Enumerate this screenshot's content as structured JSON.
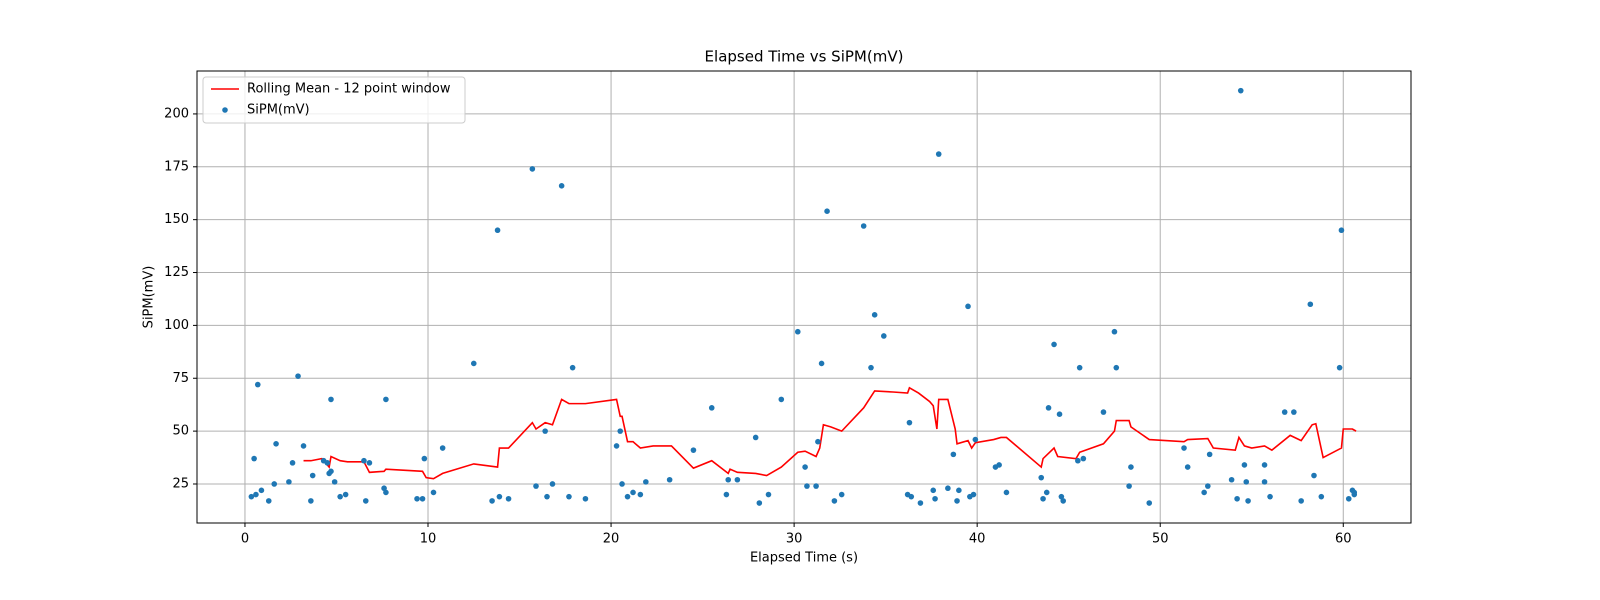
{
  "chart_data": {
    "type": "scatter",
    "title": "Elapsed Time vs SiPM(mV)",
    "x_label": "Elapsed Time (s)",
    "y_label": "SiPM(mV)",
    "xlim": [
      -2.62,
      63.7
    ],
    "ylim": [
      6.55,
      220.3
    ],
    "xticks": [
      0,
      10,
      20,
      30,
      40,
      50,
      60
    ],
    "yticks": [
      25,
      50,
      75,
      100,
      125,
      150,
      175,
      200
    ],
    "grid": true,
    "legend": "upper left",
    "series": [
      {
        "name": "Rolling Mean - 12 point window",
        "type": "line",
        "color": "#ff0000",
        "x": [
          3.2,
          3.6,
          4.2,
          4.4,
          4.6,
          4.7,
          5.2,
          5.6,
          6.5,
          6.8,
          7.6,
          7.7,
          9.7,
          9.9,
          10.3,
          10.8,
          12.5,
          13.8,
          13.9,
          14.4,
          15.7,
          15.9,
          16.4,
          16.8,
          17.3,
          17.7,
          18.6,
          20.3,
          20.5,
          20.6,
          20.9,
          21.2,
          21.6,
          22.3,
          23.3,
          24.5,
          25.5,
          26.4,
          26.5,
          26.9,
          27.9,
          28.5,
          29.3,
          30.2,
          30.6,
          31.2,
          31.4,
          31.6,
          32.0,
          32.6,
          33.8,
          34.4,
          35.4,
          36.2,
          36.3,
          36.8,
          37.4,
          37.6,
          37.8,
          37.9,
          38.4,
          38.8,
          38.9,
          39.5,
          39.7,
          39.9,
          40.9,
          41.3,
          41.6,
          43.5,
          43.6,
          44.2,
          44.4,
          45.4,
          45.6,
          46.9,
          47.5,
          47.6,
          48.3,
          48.4,
          49.4,
          51.3,
          51.5,
          52.6,
          52.9,
          54.1,
          54.3,
          54.6,
          55.0,
          55.7,
          56.1,
          57.1,
          57.7,
          58.3,
          58.5,
          58.9,
          59.9,
          60.0,
          60.5,
          60.7
        ],
        "values": [
          36,
          36,
          37,
          35,
          33,
          38,
          36,
          35.5,
          35.5,
          30.5,
          31,
          32,
          31,
          28,
          27.5,
          30,
          34.5,
          33,
          42,
          42,
          54,
          51,
          54,
          53,
          65,
          63,
          63,
          65,
          57,
          57,
          45,
          45,
          42,
          43,
          43,
          32.5,
          36,
          30,
          32,
          30.5,
          30,
          29,
          33,
          40,
          40.5,
          38,
          42,
          53,
          52,
          50,
          61,
          69,
          68.5,
          68,
          70.5,
          68,
          64,
          62,
          51,
          65,
          65,
          51,
          44,
          45.5,
          42,
          44.5,
          46,
          47,
          47,
          33,
          37,
          42,
          38,
          37,
          40,
          44,
          50,
          55,
          55,
          52,
          46,
          45,
          46,
          46.5,
          42,
          41,
          47,
          43,
          42,
          43,
          41,
          48,
          45.5,
          53,
          53.5,
          37.5,
          42,
          51,
          51,
          50
        ]
      },
      {
        "name": "SiPM(mV)",
        "type": "scatter",
        "color": "#1f77b4",
        "x": [
          0.35,
          0.5,
          0.6,
          0.7,
          0.9,
          1.3,
          1.6,
          1.7,
          2.4,
          2.6,
          2.9,
          3.2,
          3.6,
          3.7,
          4.3,
          4.5,
          4.6,
          4.7,
          4.7,
          4.9,
          5.2,
          5.5,
          6.5,
          6.6,
          6.8,
          7.6,
          7.7,
          7.7,
          9.4,
          9.7,
          9.8,
          10.3,
          10.8,
          12.5,
          13.5,
          13.8,
          13.9,
          14.4,
          15.7,
          15.9,
          16.4,
          16.5,
          16.8,
          17.3,
          17.7,
          17.9,
          18.6,
          20.3,
          20.5,
          20.6,
          20.9,
          21.2,
          21.6,
          21.9,
          23.2,
          24.5,
          25.5,
          26.3,
          26.4,
          26.9,
          27.9,
          28.1,
          28.6,
          29.3,
          30.2,
          30.6,
          30.7,
          31.2,
          31.3,
          31.5,
          31.8,
          32.2,
          32.6,
          33.8,
          34.2,
          34.4,
          34.9,
          36.2,
          36.3,
          36.4,
          36.9,
          37.6,
          37.7,
          37.9,
          38.4,
          38.7,
          38.9,
          39.0,
          39.5,
          39.6,
          39.8,
          39.9,
          41.0,
          41.2,
          41.6,
          43.5,
          43.6,
          43.8,
          43.9,
          44.2,
          44.5,
          44.6,
          44.7,
          45.5,
          45.6,
          45.8,
          46.9,
          47.5,
          47.6,
          48.3,
          48.4,
          49.4,
          51.3,
          51.5,
          52.4,
          52.6,
          52.7,
          53.9,
          54.2,
          54.4,
          54.6,
          54.7,
          54.8,
          55.7,
          55.7,
          56.0,
          56.8,
          57.3,
          57.7,
          58.2,
          58.4,
          58.8,
          59.8,
          59.9,
          60.3,
          60.5,
          60.6,
          60.6
        ],
        "values": [
          19,
          37,
          20,
          72,
          22,
          17,
          25,
          44,
          26,
          35,
          76,
          43,
          17,
          29,
          36,
          35,
          30,
          31,
          65,
          26,
          19,
          20,
          36,
          17,
          35,
          23,
          21,
          65,
          18,
          18,
          37,
          21,
          42,
          82,
          17,
          145,
          19,
          18,
          174,
          24,
          50,
          19,
          25,
          166,
          19,
          80,
          18,
          43,
          50,
          25,
          19,
          21,
          20,
          26,
          27,
          41,
          61,
          20,
          27,
          27,
          47,
          16,
          20,
          65,
          97,
          33,
          24,
          24,
          45,
          82,
          154,
          17,
          20,
          147,
          80,
          105,
          95,
          20,
          54,
          19,
          16,
          22,
          18,
          181,
          23,
          39,
          17,
          22,
          109,
          19,
          20,
          46,
          33,
          34,
          21,
          28,
          18,
          21,
          61,
          91,
          58,
          19,
          17,
          36,
          80,
          37,
          59,
          97,
          80,
          24,
          33,
          16,
          42,
          33,
          21,
          24,
          39,
          27,
          18,
          211,
          34,
          26,
          17,
          34,
          26,
          19,
          59,
          59,
          17,
          110,
          29,
          19,
          80,
          145,
          18,
          22,
          20,
          21
        ]
      }
    ]
  }
}
